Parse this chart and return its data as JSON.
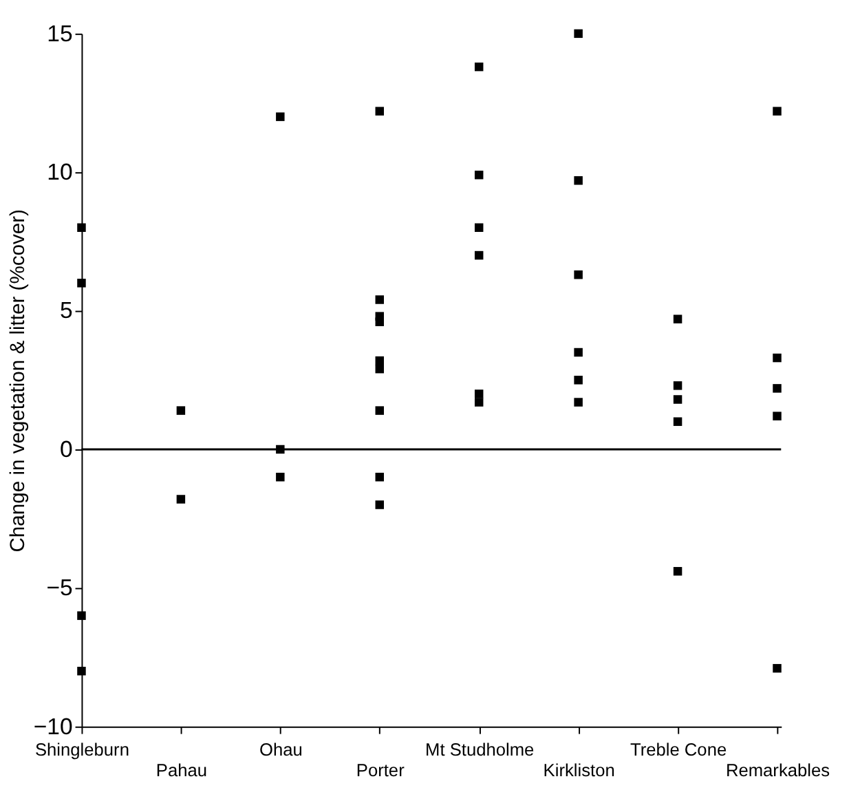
{
  "chart_data": {
    "type": "scatter",
    "ylabel": "Change in vegetation & litter (%cover)",
    "categories": [
      "Shingleburn",
      "Pahau",
      "Ohau",
      "Porter",
      "Mt Studholme",
      "Kirkliston",
      "Treble Cone",
      "Remarkables"
    ],
    "series": [
      {
        "color": "#000000",
        "x": [
          "Shingleburn",
          "Shingleburn",
          "Shingleburn",
          "Shingleburn",
          "Pahau",
          "Pahau",
          "Ohau",
          "Ohau",
          "Ohau",
          "Porter",
          "Porter",
          "Porter",
          "Porter",
          "Porter",
          "Porter",
          "Porter",
          "Porter",
          "Porter",
          "Mt Studholme",
          "Mt Studholme",
          "Mt Studholme",
          "Mt Studholme",
          "Mt Studholme",
          "Mt Studholme",
          "Kirkliston",
          "Kirkliston",
          "Kirkliston",
          "Kirkliston",
          "Kirkliston",
          "Kirkliston",
          "Treble Cone",
          "Treble Cone",
          "Treble Cone",
          "Treble Cone",
          "Treble Cone",
          "Remarkables",
          "Remarkables",
          "Remarkables",
          "Remarkables",
          "Remarkables"
        ],
        "values": [
          8,
          6,
          -6,
          -8,
          1.4,
          -1.8,
          12,
          0,
          -1,
          12.2,
          5.4,
          4.8,
          4.6,
          3.2,
          2.9,
          1.4,
          -1,
          -2,
          13.8,
          9.9,
          8,
          7,
          2,
          1.7,
          15,
          9.7,
          6.3,
          3.5,
          2.5,
          1.7,
          4.7,
          2.3,
          1.8,
          1,
          -4.4,
          12.2,
          3.3,
          2.2,
          1.2,
          -7.9
        ]
      }
    ],
    "ylim": [
      -10,
      15
    ],
    "yticks": [
      -10,
      -5,
      0,
      5,
      10,
      15
    ],
    "marker": "square",
    "grid": false,
    "ref_lines": [
      {
        "axis": "y",
        "value": 0
      }
    ]
  }
}
